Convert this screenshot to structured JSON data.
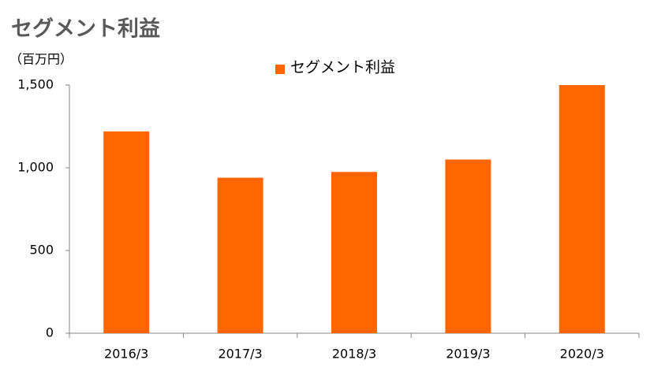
{
  "chart_data": {
    "type": "bar",
    "title": "セグメント利益",
    "y_label": "（百万円）",
    "categories": [
      "2016/3",
      "2017/3",
      "2018/3",
      "2019/3",
      "2020/3"
    ],
    "series": [
      {
        "name": "セグメント利益",
        "color": "#ff6600",
        "values": [
          1220,
          940,
          975,
          1050,
          1500
        ]
      }
    ],
    "ylim": [
      0,
      1500
    ],
    "yticks": [
      0,
      500,
      {
        "value": 1000,
        "label": "1,000"
      },
      {
        "value": 1500,
        "label": "1,500"
      }
    ],
    "grid": false,
    "legend": "top"
  }
}
